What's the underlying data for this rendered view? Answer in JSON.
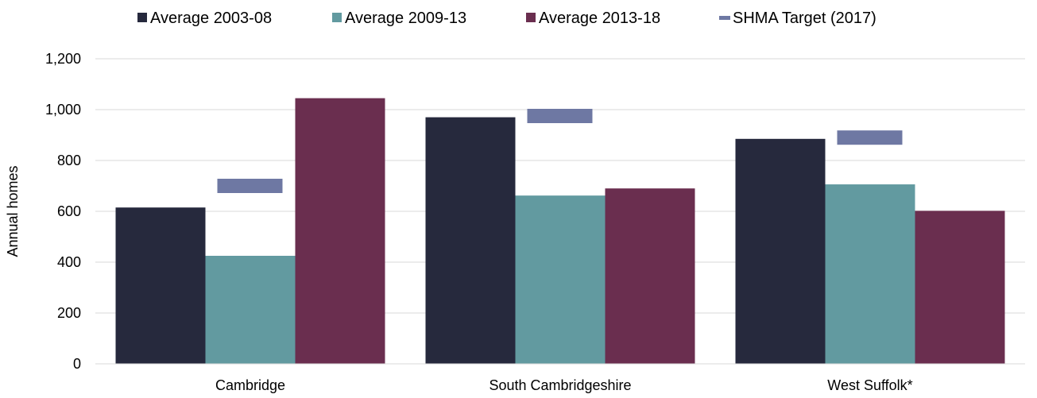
{
  "chart_data": {
    "type": "bar",
    "categories": [
      "Cambridge",
      "South Cambridgeshire",
      "West Suffolk*"
    ],
    "series": [
      {
        "name": "Average 2003-08",
        "values": [
          615,
          970,
          885
        ],
        "color": "#26293d"
      },
      {
        "name": "Average 2009-13",
        "values": [
          425,
          662,
          706
        ],
        "color": "#629aa0"
      },
      {
        "name": "Average 2013-18",
        "values": [
          1045,
          690,
          602
        ],
        "color": "#6a2e4f"
      }
    ],
    "target": {
      "name": "SHMA Target (2017)",
      "values": [
        700,
        975,
        890
      ],
      "color": "#6e78a3"
    },
    "ylabel": "Annual homes",
    "xlabel": "",
    "ylim": [
      0,
      1200
    ],
    "yticks": [
      0,
      200,
      400,
      600,
      800,
      1000,
      1200
    ],
    "ytick_labels": [
      "0",
      "200",
      "400",
      "600",
      "800",
      "1,000",
      "1,200"
    ],
    "grid": true,
    "legend_position": "top"
  }
}
